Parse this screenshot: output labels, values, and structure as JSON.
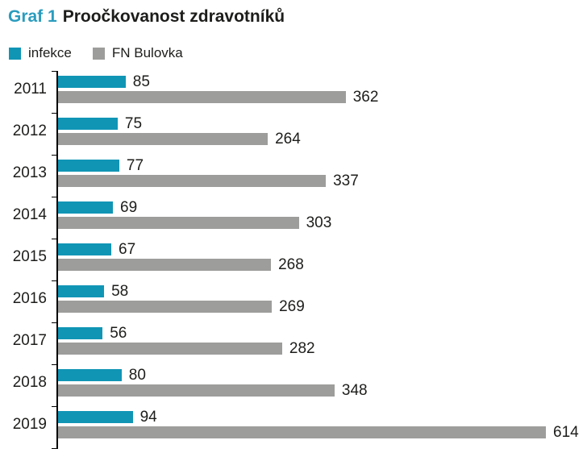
{
  "title": {
    "prefix": "Graf 1",
    "text": "Proočkovanost zdravotníků"
  },
  "legend": {
    "items": [
      {
        "label": "infekce",
        "color": "#1095b5"
      },
      {
        "label": "FN Bulovka",
        "color": "#9d9d9c"
      }
    ]
  },
  "chart_data": {
    "type": "bar",
    "orientation": "horizontal",
    "title": "Graf 1 Proočkovanost zdravotníků",
    "categories": [
      "2011",
      "2012",
      "2013",
      "2014",
      "2015",
      "2016",
      "2017",
      "2018",
      "2019"
    ],
    "series": [
      {
        "name": "infekce",
        "color": "#1095b5",
        "values": [
          85,
          75,
          77,
          69,
          67,
          58,
          56,
          80,
          94
        ]
      },
      {
        "name": "FN Bulovka",
        "color": "#9d9d9c",
        "values": [
          362,
          264,
          337,
          303,
          268,
          269,
          282,
          348,
          614
        ]
      }
    ],
    "xlim": [
      0,
      614
    ],
    "value_labels": true,
    "grid": false,
    "legend_position": "top-left"
  },
  "colors": {
    "title_accent": "#2a9cbe",
    "text": "#1d1d1b",
    "axis": "#000000",
    "background": "#ffffff"
  }
}
